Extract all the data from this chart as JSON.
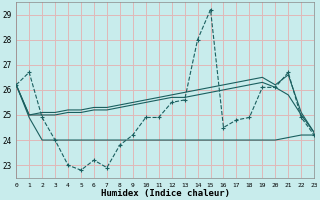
{
  "xlabel": "Humidex (Indice chaleur)",
  "xlim": [
    0,
    23
  ],
  "ylim": [
    22.5,
    29.5
  ],
  "yticks": [
    23,
    24,
    25,
    26,
    27,
    28,
    29
  ],
  "xticks": [
    0,
    1,
    2,
    3,
    4,
    5,
    6,
    7,
    8,
    9,
    10,
    11,
    12,
    13,
    14,
    15,
    16,
    17,
    18,
    19,
    20,
    21,
    22,
    23
  ],
  "bg_color": "#c8ecec",
  "grid_color": "#e0b8b8",
  "line_color": "#1a5f5f",
  "series1": [
    26.2,
    26.7,
    24.9,
    24.0,
    23.0,
    22.8,
    23.2,
    22.9,
    23.8,
    24.2,
    24.9,
    24.9,
    25.5,
    25.6,
    28.0,
    29.2,
    24.5,
    24.8,
    24.9,
    26.1,
    26.1,
    26.7,
    24.9,
    24.2
  ],
  "series2": [
    26.2,
    24.9,
    24.0,
    24.0,
    24.0,
    24.0,
    24.0,
    24.0,
    24.0,
    24.0,
    24.0,
    24.0,
    24.0,
    24.0,
    24.0,
    24.0,
    24.0,
    24.0,
    24.0,
    24.0,
    24.0,
    24.1,
    24.2,
    24.2
  ],
  "series3": [
    26.2,
    25.0,
    25.0,
    25.0,
    25.1,
    25.1,
    25.2,
    25.2,
    25.3,
    25.4,
    25.5,
    25.6,
    25.7,
    25.7,
    25.8,
    25.9,
    26.0,
    26.1,
    26.2,
    26.3,
    26.1,
    25.8,
    25.0,
    24.3
  ],
  "series4": [
    26.2,
    25.0,
    25.1,
    25.1,
    25.2,
    25.2,
    25.3,
    25.3,
    25.4,
    25.5,
    25.6,
    25.7,
    25.8,
    25.9,
    26.0,
    26.1,
    26.2,
    26.3,
    26.4,
    26.5,
    26.2,
    26.6,
    25.1,
    24.3
  ]
}
